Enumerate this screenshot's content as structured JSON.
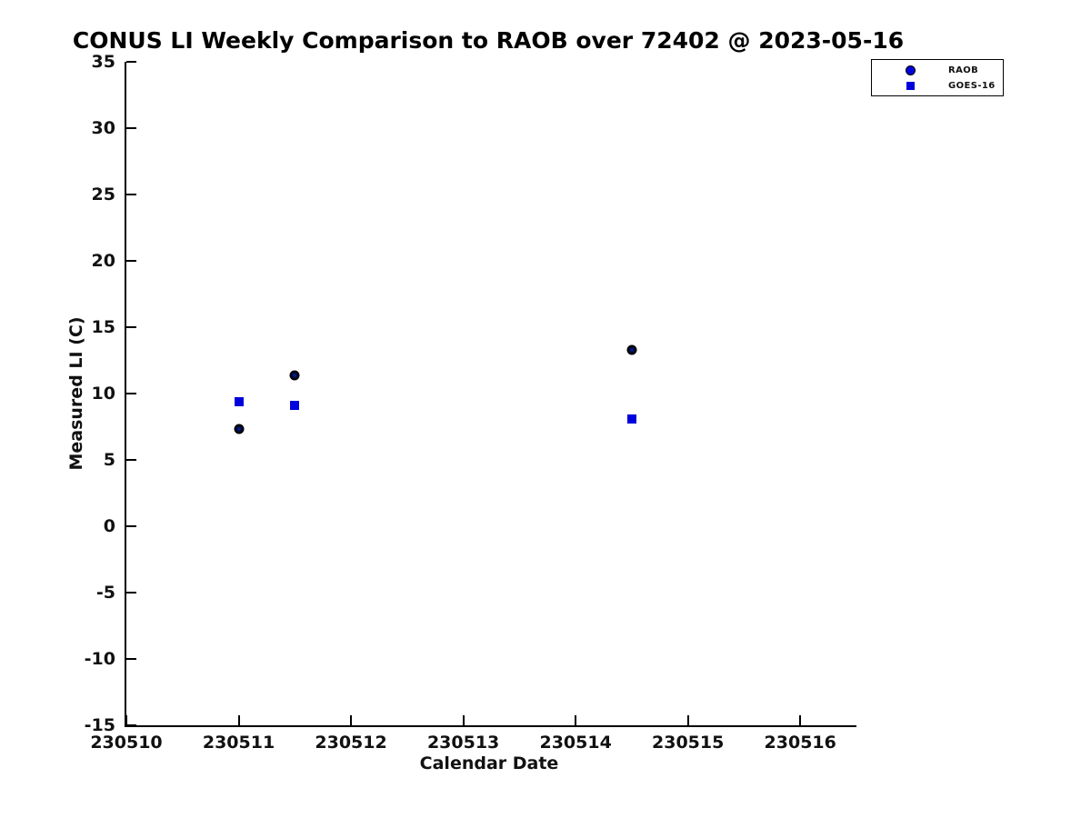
{
  "title": "CONUS LI Weekly Comparison to RAOB over 72402 @ 2023-05-16",
  "colors": {
    "marker_blue": "#0000dd",
    "raob_plot_marker": "#000000",
    "axis": "#000000",
    "background": "#ffffff"
  },
  "chart_data": {
    "type": "scatter",
    "title": "CONUS LI Weekly Comparison to RAOB over 72402 @ 2023-05-16",
    "xlabel": "Calendar Date",
    "ylabel": "Measured LI (C)",
    "xlim": [
      230510,
      230516.5
    ],
    "ylim": [
      -15,
      35
    ],
    "xticks": [
      230510,
      230511,
      230512,
      230513,
      230514,
      230515,
      230516
    ],
    "yticks": [
      -15,
      -10,
      -5,
      0,
      5,
      10,
      15,
      20,
      25,
      30,
      35
    ],
    "grid": false,
    "legend_position": "top-right",
    "series": [
      {
        "name": "RAOB",
        "marker": "circle",
        "color": "#0000dd",
        "edge_color": "#000000",
        "x": [
          230511.0,
          230511.5,
          230514.5
        ],
        "y": [
          7.3,
          11.4,
          13.3
        ]
      },
      {
        "name": "GOES-16",
        "marker": "square",
        "color": "#0000dd",
        "x": [
          230511.0,
          230511.5,
          230514.5
        ],
        "y": [
          9.4,
          9.1,
          8.1
        ]
      }
    ]
  }
}
